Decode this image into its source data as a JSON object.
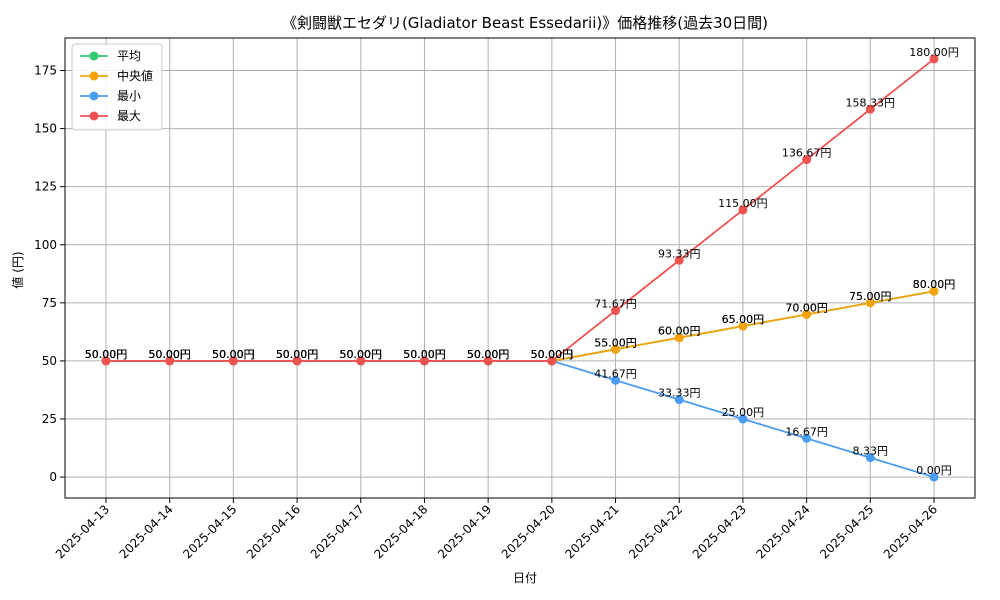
{
  "chart_data": {
    "type": "line",
    "title": "《剣闘獣エセダリ(Gladiator Beast Essedarii)》価格推移(過去30日間)",
    "xlabel": "日付",
    "ylabel": "値 (円)",
    "ylim": [
      -9,
      189
    ],
    "yticks": [
      0,
      25,
      50,
      75,
      100,
      125,
      150,
      175
    ],
    "grid": true,
    "legend_position": "top-left",
    "categories": [
      "2025-04-13",
      "2025-04-14",
      "2025-04-15",
      "2025-04-16",
      "2025-04-17",
      "2025-04-18",
      "2025-04-19",
      "2025-04-20",
      "2025-04-21",
      "2025-04-22",
      "2025-04-23",
      "2025-04-24",
      "2025-04-25",
      "2025-04-26"
    ],
    "series": [
      {
        "name": "平均",
        "color": "#2ecc71",
        "values": [
          50,
          50,
          50,
          50,
          50,
          50,
          50,
          50,
          55,
          60,
          65,
          70,
          75,
          80
        ],
        "labels": [
          "50.00円",
          "50.00円",
          "50.00円",
          "50.00円",
          "50.00円",
          "50.00円",
          "50.00円",
          "50.00円",
          "55.00円",
          "60.00円",
          "65.00円",
          "70.00円",
          "75.00円",
          "80.00円"
        ]
      },
      {
        "name": "中央値",
        "color": "#f5a30a",
        "values": [
          50,
          50,
          50,
          50,
          50,
          50,
          50,
          50,
          55,
          60,
          65,
          70,
          75,
          80
        ],
        "labels": [
          "50.00円",
          "50.00円",
          "50.00円",
          "50.00円",
          "50.00円",
          "50.00円",
          "50.00円",
          "50.00円",
          "55.00円",
          "60.00円",
          "65.00円",
          "70.00円",
          "75.00円",
          "80.00円"
        ]
      },
      {
        "name": "最小",
        "color": "#4b9cf5",
        "values": [
          50,
          50,
          50,
          50,
          50,
          50,
          50,
          50,
          41.67,
          33.33,
          25,
          16.67,
          8.33,
          0
        ],
        "labels": [
          "50.00円",
          "50.00円",
          "50.00円",
          "50.00円",
          "50.00円",
          "50.00円",
          "50.00円",
          "50.00円",
          "41.67円",
          "33.33円",
          "25.00円",
          "16.67円",
          "8.33円",
          "0.00円"
        ]
      },
      {
        "name": "最大",
        "color": "#ef5350",
        "values": [
          50,
          50,
          50,
          50,
          50,
          50,
          50,
          50,
          71.67,
          93.33,
          115,
          136.67,
          158.33,
          180
        ],
        "labels": [
          "50.00円",
          "50.00円",
          "50.00円",
          "50.00円",
          "50.00円",
          "50.00円",
          "50.00円",
          "50.00円",
          "71.67円",
          "93.33円",
          "115.00円",
          "136.67円",
          "158.33円",
          "180.00円"
        ]
      }
    ]
  }
}
